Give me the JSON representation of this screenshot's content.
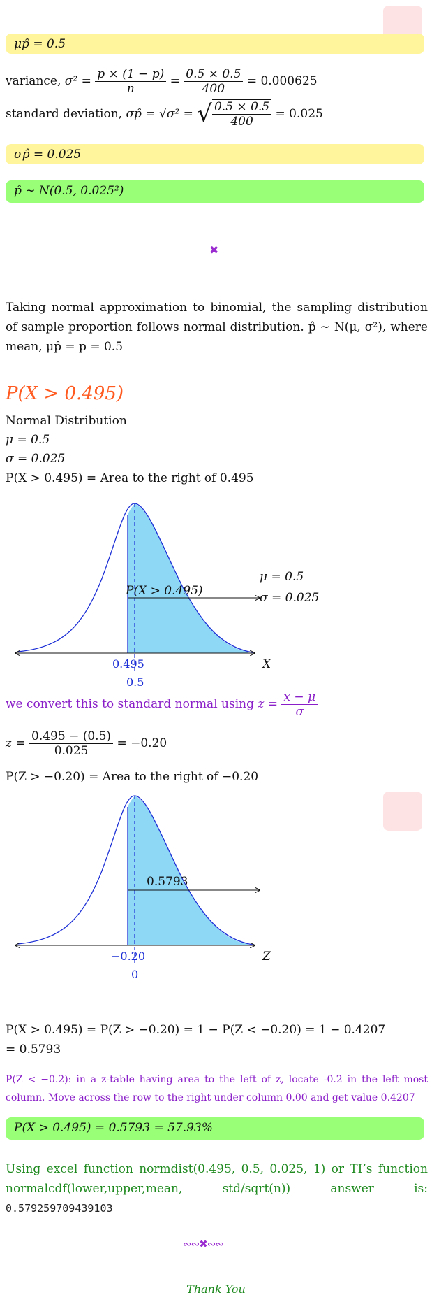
{
  "top": {
    "mean_box": "μp̂ = 0.5",
    "variance_prefix": "variance,",
    "variance_lhs": "σ² =",
    "variance_frac1_num": "p × (1 − p)",
    "variance_frac1_den": "n",
    "variance_frac2_num": "0.5 × 0.5",
    "variance_frac2_den": "400",
    "variance_result": "= 0.000625",
    "sd_prefix": "standard deviation,",
    "sd_lhs": "σp̂ = √σ² =",
    "sd_radicand_num": "0.5 × 0.5",
    "sd_radicand_den": "400",
    "sd_result": "= 0.025",
    "sd_box": "σp̂ = 0.025",
    "dist_box": "p̂ ∼ N(0.5, 0.025²)"
  },
  "intro": {
    "para": "Taking normal approximation to binomial, the sampling distribution of sample proportion follows normal distribution. p̂ ∼ N(μ, σ²), where mean, μp̂ = p = 0.5"
  },
  "problem": {
    "heading": "P(X > 0.495)",
    "dist_name": "Normal Distribution",
    "mu_line": "μ = 0.5",
    "sigma_line": "σ = 0.025",
    "area_line": "P(X > 0.495) = Area to the right of 0.495"
  },
  "graph1": {
    "area_label": "P(X > 0.495)",
    "mu_label": "μ = 0.5",
    "sigma_label": "σ = 0.025",
    "tick_left": "0.495",
    "tick_mean": "0.5",
    "axis_label": "X"
  },
  "convert": {
    "text": "we convert this to standard normal using",
    "z_lhs": "z =",
    "z_num": "x − μ",
    "z_den": "σ",
    "calc_lhs": "z =",
    "calc_num": "0.495 − (0.5)",
    "calc_den": "0.025",
    "calc_result": "= −0.20",
    "area_line": "P(Z > −0.20) = Area to the right of −0.20"
  },
  "graph2": {
    "area_label": "0.5793",
    "tick_left": "−0.20",
    "tick_mean": "0",
    "axis_label": "Z"
  },
  "result": {
    "line1": "P(X > 0.495) = P(Z > −0.20) = 1 − P(Z < −0.20) = 1 − 0.4207",
    "line2": "= 0.5793",
    "ztable_note": "P(Z < −0.2): in a z-table having area to the left of z, locate -0.2 in the left most column. Move across the row to the right under column 0.00 and get value 0.4207",
    "final_box": "P(X > 0.495) = 0.5793 = 57.93%",
    "excel_text": "Using excel function normdist(0.495, 0.5, 0.025, 1) or TI’s function normalcdf(lower,upper,mean, std/sqrt(n)) answer is:",
    "excel_value": "0.579259709439103",
    "thanks": "Thank You"
  },
  "colors": {
    "yellow": "#fff59d",
    "green": "#99ff77",
    "heading": "#ff5a1f",
    "purple": "#8a1ec8",
    "dark_green": "#1f8a1f",
    "shade": "#8fd8f5",
    "curve": "#1c2fd6"
  }
}
